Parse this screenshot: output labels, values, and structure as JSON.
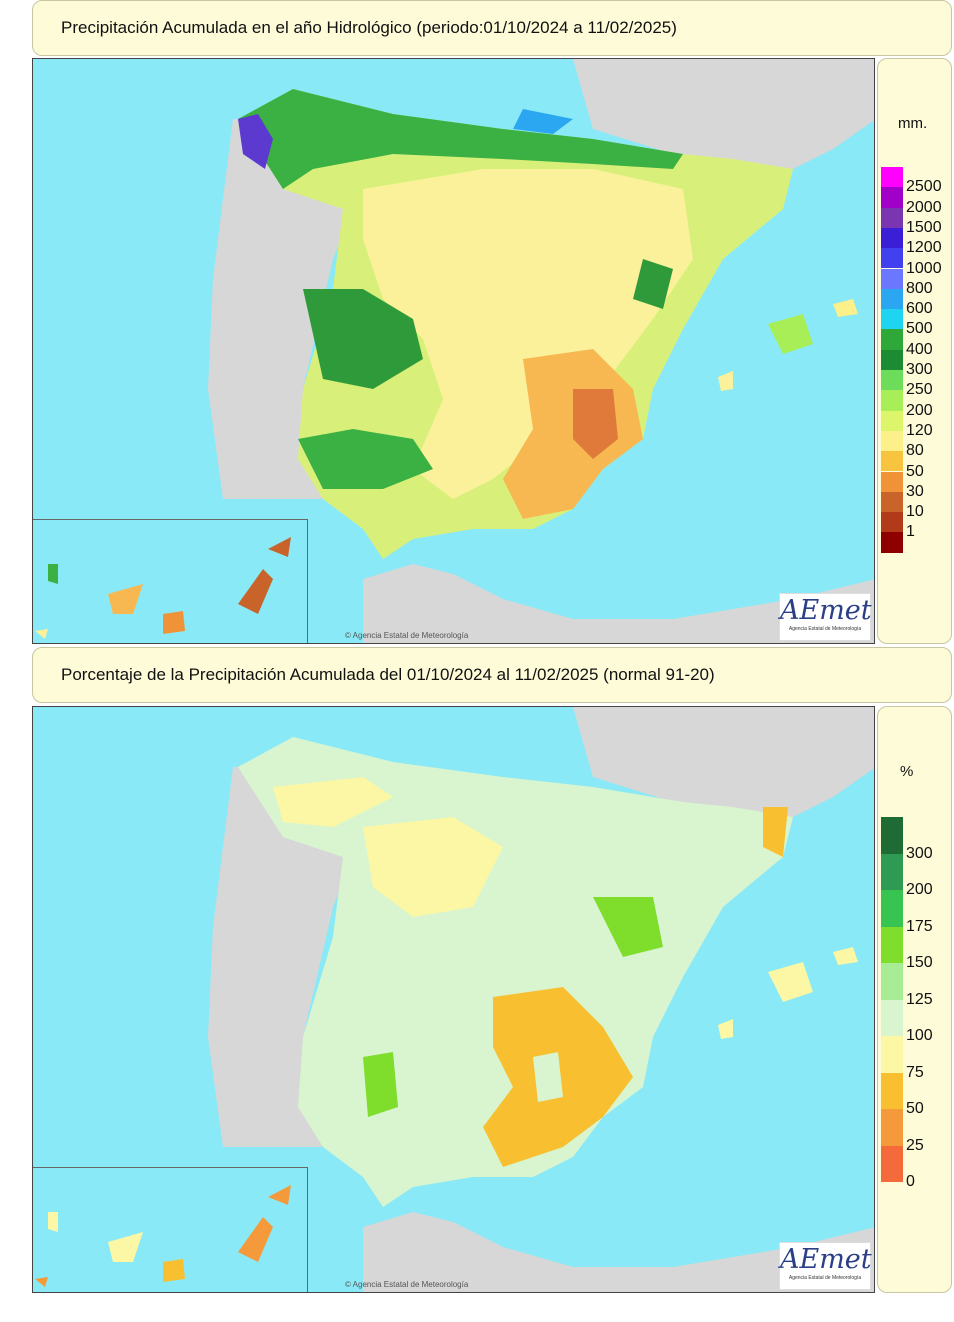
{
  "panel1": {
    "title": "Precipitación Acumulada en el año Hidrológico  (periodo:01/10/2024 a 11/02/2025)",
    "legend_unit": "mm.",
    "legend": [
      {
        "label": "2500",
        "color": "#ff00ff"
      },
      {
        "label": "2000",
        "color": "#a000c8"
      },
      {
        "label": "1500",
        "color": "#7a35b0"
      },
      {
        "label": "1200",
        "color": "#3a1fd6"
      },
      {
        "label": "1000",
        "color": "#4141f0"
      },
      {
        "label": "800",
        "color": "#6a78ff"
      },
      {
        "label": "600",
        "color": "#2aa7f0"
      },
      {
        "label": "500",
        "color": "#1fd4f0"
      },
      {
        "label": "400",
        "color": "#2fa83a"
      },
      {
        "label": "300",
        "color": "#1d8a34"
      },
      {
        "label": "250",
        "color": "#6cdc5a"
      },
      {
        "label": "200",
        "color": "#a8ee56"
      },
      {
        "label": "120",
        "color": "#dcf56a"
      },
      {
        "label": "80",
        "color": "#fbf08a"
      },
      {
        "label": "50",
        "color": "#f8c440"
      },
      {
        "label": "30",
        "color": "#f09238"
      },
      {
        "label": "10",
        "color": "#c8642a"
      },
      {
        "label": "1",
        "color": "#b03a1a"
      },
      {
        "label": "",
        "color": "#8e0000"
      }
    ],
    "copyright": "© Agencia Estatal de Meteorología",
    "logo_text": "AEmet",
    "logo_sub": "Agencia Estatal de Meteorología"
  },
  "panel2": {
    "title": "Porcentaje de la Precipitación Acumulada del 01/10/2024 al 11/02/2025 (normal 91-20)",
    "legend_unit": "%",
    "legend": [
      {
        "label": "300",
        "color": "#1e6b36"
      },
      {
        "label": "200",
        "color": "#2e9a54"
      },
      {
        "label": "175",
        "color": "#38c450"
      },
      {
        "label": "150",
        "color": "#7fdd2c"
      },
      {
        "label": "125",
        "color": "#a8ec96"
      },
      {
        "label": "100",
        "color": "#d8f5d0"
      },
      {
        "label": "75",
        "color": "#fbf7a4"
      },
      {
        "label": "50",
        "color": "#f8c030"
      },
      {
        "label": "25",
        "color": "#f59a3a"
      },
      {
        "label": "0",
        "color": "#f56a3a"
      }
    ],
    "copyright": "© Agencia Estatal de Meteorología",
    "logo_text": "AEmet",
    "logo_sub": "Agencia Estatal de Meteorología"
  }
}
